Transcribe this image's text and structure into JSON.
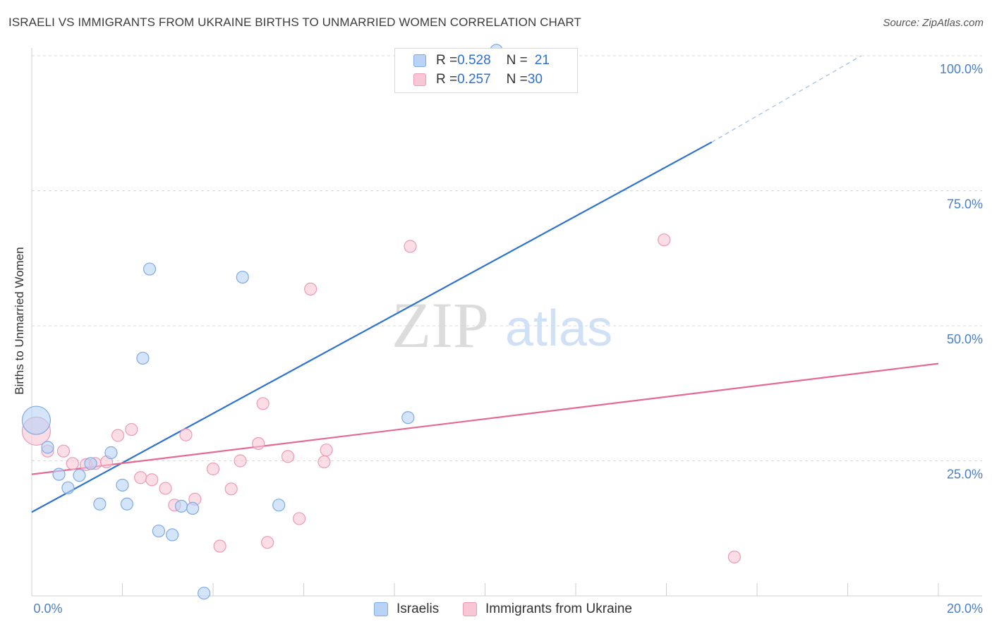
{
  "title": "ISRAELI VS IMMIGRANTS FROM UKRAINE BIRTHS TO UNMARRIED WOMEN CORRELATION CHART",
  "source": "Source: ZipAtlas.com",
  "watermark": {
    "zip": "ZIP",
    "atlas": "atlas"
  },
  "legend": {
    "israelis": {
      "r_label": "R = ",
      "r_value": "0.528",
      "n_label": "N = ",
      "n_value": "21"
    },
    "ukraine": {
      "r_label": "R = ",
      "r_value": "0.257",
      "n_label": "N = ",
      "n_value": "30"
    }
  },
  "colors": {
    "israelis_fill": "#b8d3f5",
    "israelis_stroke": "#7eaae6",
    "israelis_line": "#2e72d2",
    "ukraine_fill": "#f8c6d5",
    "ukraine_stroke": "#ec9ab6",
    "ukraine_line": "#e46a95",
    "tick_text": "#4a7fc8",
    "grid": "#d9d9d9"
  },
  "chart_data": {
    "type": "scatter",
    "title": "ISRAELI VS IMMIGRANTS FROM UKRAINE BIRTHS TO UNMARRIED WOMEN CORRELATION CHART",
    "xlabel": "",
    "ylabel": "Births to Unmarried Women",
    "xlim": [
      0,
      20
    ],
    "ylim": [
      0,
      100
    ],
    "x_tick_labels": [
      "0.0%",
      "20.0%"
    ],
    "y_ticks": [
      25,
      50,
      75,
      100
    ],
    "y_tick_labels": [
      "25.0%",
      "50.0%",
      "75.0%",
      "100.0%"
    ],
    "grid": true,
    "legend_position": "top-center",
    "series": [
      {
        "name": "Israelis",
        "points": [
          {
            "x": 0.1,
            "y": 32.5,
            "s": 3
          },
          {
            "x": 0.35,
            "y": 27.5,
            "s": 1
          },
          {
            "x": 0.6,
            "y": 22.5,
            "s": 1
          },
          {
            "x": 0.8,
            "y": 20.0,
            "s": 1
          },
          {
            "x": 1.05,
            "y": 22.3,
            "s": 1
          },
          {
            "x": 1.3,
            "y": 24.5,
            "s": 1
          },
          {
            "x": 1.5,
            "y": 17.0,
            "s": 1
          },
          {
            "x": 1.75,
            "y": 26.5,
            "s": 1
          },
          {
            "x": 2.0,
            "y": 20.5,
            "s": 1
          },
          {
            "x": 2.1,
            "y": 17.0,
            "s": 1
          },
          {
            "x": 2.45,
            "y": 44.0,
            "s": 1
          },
          {
            "x": 2.6,
            "y": 60.5,
            "s": 1
          },
          {
            "x": 2.8,
            "y": 12.0,
            "s": 1
          },
          {
            "x": 3.1,
            "y": 11.3,
            "s": 1
          },
          {
            "x": 3.3,
            "y": 16.6,
            "s": 1
          },
          {
            "x": 3.55,
            "y": 16.2,
            "s": 1
          },
          {
            "x": 3.8,
            "y": 0.5,
            "s": 1
          },
          {
            "x": 4.65,
            "y": 59.0,
            "s": 1
          },
          {
            "x": 5.45,
            "y": 16.8,
            "s": 1
          },
          {
            "x": 8.3,
            "y": 33.0,
            "s": 1
          },
          {
            "x": 10.25,
            "y": 101.0,
            "s": 1
          }
        ],
        "trend": {
          "x": [
            0,
            15
          ],
          "y": [
            15.5,
            84.0
          ],
          "dashed_to": {
            "x": 18.3,
            "y": 100.0
          }
        }
      },
      {
        "name": "Immigrants from Ukraine",
        "points": [
          {
            "x": 0.1,
            "y": 30.5,
            "s": 3
          },
          {
            "x": 0.35,
            "y": 26.8,
            "s": 1
          },
          {
            "x": 0.7,
            "y": 26.8,
            "s": 1
          },
          {
            "x": 0.9,
            "y": 24.5,
            "s": 1
          },
          {
            "x": 1.2,
            "y": 24.3,
            "s": 1
          },
          {
            "x": 1.4,
            "y": 24.5,
            "s": 1
          },
          {
            "x": 1.65,
            "y": 24.8,
            "s": 1
          },
          {
            "x": 1.9,
            "y": 29.7,
            "s": 1
          },
          {
            "x": 2.2,
            "y": 30.8,
            "s": 1
          },
          {
            "x": 2.4,
            "y": 21.9,
            "s": 1
          },
          {
            "x": 2.65,
            "y": 21.5,
            "s": 1
          },
          {
            "x": 2.95,
            "y": 19.9,
            "s": 1
          },
          {
            "x": 3.15,
            "y": 16.8,
            "s": 1
          },
          {
            "x": 3.4,
            "y": 29.8,
            "s": 1
          },
          {
            "x": 3.6,
            "y": 17.9,
            "s": 1
          },
          {
            "x": 4.0,
            "y": 23.5,
            "s": 1
          },
          {
            "x": 4.15,
            "y": 9.2,
            "s": 1
          },
          {
            "x": 4.4,
            "y": 19.8,
            "s": 1
          },
          {
            "x": 4.6,
            "y": 25.0,
            "s": 1
          },
          {
            "x": 5.0,
            "y": 28.2,
            "s": 1
          },
          {
            "x": 5.1,
            "y": 35.6,
            "s": 1
          },
          {
            "x": 5.2,
            "y": 9.9,
            "s": 1
          },
          {
            "x": 5.65,
            "y": 25.8,
            "s": 1
          },
          {
            "x": 5.9,
            "y": 14.3,
            "s": 1
          },
          {
            "x": 6.15,
            "y": 56.8,
            "s": 1
          },
          {
            "x": 6.45,
            "y": 24.8,
            "s": 1
          },
          {
            "x": 6.5,
            "y": 27.0,
            "s": 1
          },
          {
            "x": 8.35,
            "y": 64.7,
            "s": 1
          },
          {
            "x": 13.95,
            "y": 65.9,
            "s": 1
          },
          {
            "x": 15.5,
            "y": 7.2,
            "s": 1
          }
        ],
        "trend": {
          "x": [
            0,
            20
          ],
          "y": [
            22.5,
            43.0
          ]
        }
      }
    ]
  }
}
